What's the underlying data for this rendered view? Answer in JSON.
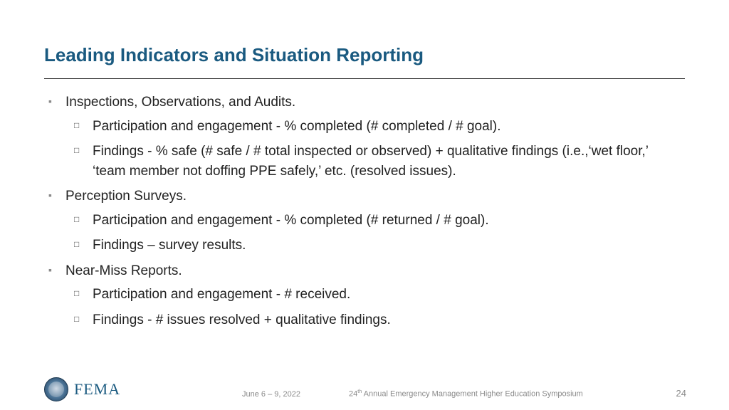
{
  "colors": {
    "title": "#1a5a80",
    "fema_logo_text": "#1a5a80",
    "body_text": "#222222",
    "muted": "#8a8a8a",
    "rule": "#2a2a2a",
    "background": "#ffffff"
  },
  "typography": {
    "title_fontsize_pt": 20,
    "body_fontsize_pt": 14,
    "footer_fontsize_pt": 8
  },
  "title": "Leading Indicators and Situation Reporting",
  "bullets": [
    {
      "text": "Inspections, Observations, and Audits.",
      "sub": [
        "Participation and engagement - % completed (# completed / # goal).",
        "Findings - % safe (# safe / # total inspected or observed) + qualitative findings (i.e.,‘wet floor,’ ‘team member not doffing PPE safely,’ etc. (resolved issues)."
      ]
    },
    {
      "text": "Perception Surveys.",
      "sub": [
        "Participation and engagement - % completed (# returned / # goal).",
        "Findings – survey results."
      ]
    },
    {
      "text": "Near-Miss Reports.",
      "sub": [
        "Participation and engagement - # received.",
        "Findings - # issues resolved + qualitative findings."
      ]
    }
  ],
  "footer": {
    "date": "June 6 – 9, 2022",
    "event_prefix": "24",
    "event_super": "th",
    "event_rest": " Annual Emergency Management Higher Education Symposium",
    "page": "24",
    "logo_text": "FEMA"
  }
}
